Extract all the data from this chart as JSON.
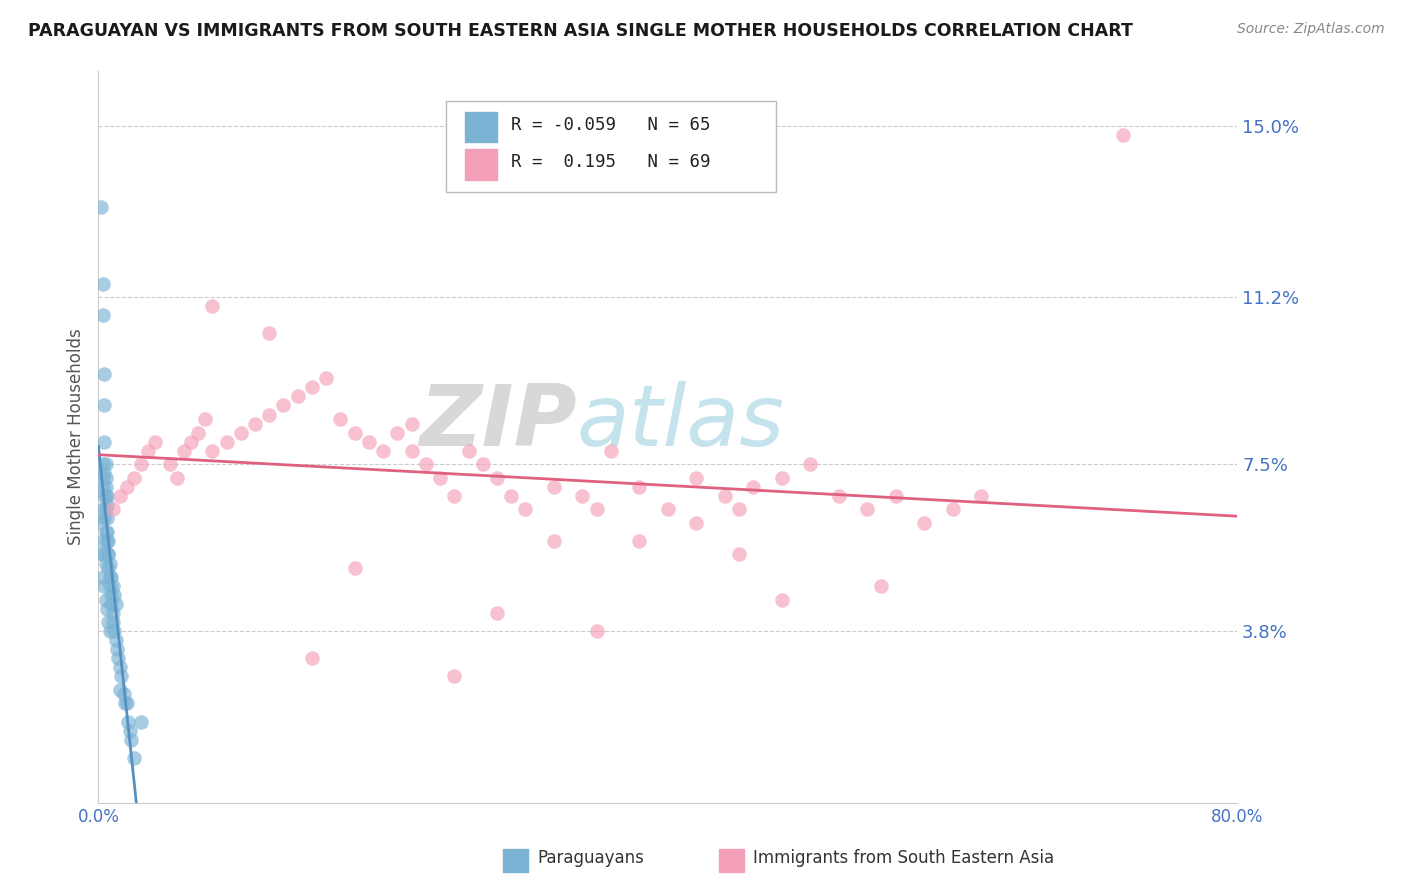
{
  "title": "PARAGUAYAN VS IMMIGRANTS FROM SOUTH EASTERN ASIA SINGLE MOTHER HOUSEHOLDS CORRELATION CHART",
  "source": "Source: ZipAtlas.com",
  "ylabel": "Single Mother Households",
  "xmin": 0.0,
  "xmax": 0.8,
  "ymin": 0.0,
  "ymax": 0.162,
  "yticks": [
    0.0,
    0.038,
    0.075,
    0.112,
    0.15
  ],
  "ytick_labels": [
    "",
    "3.8%",
    "7.5%",
    "11.2%",
    "15.0%"
  ],
  "xticks": [
    0.0,
    0.1,
    0.2,
    0.3,
    0.4,
    0.5,
    0.6,
    0.7,
    0.8
  ],
  "xtick_labels": [
    "0.0%",
    "",
    "",
    "",
    "",
    "",
    "",
    "",
    "80.0%"
  ],
  "blue_color": "#7ab3d4",
  "pink_color": "#f4a0b8",
  "blue_line_color": "#5590c0",
  "pink_line_color": "#e06080",
  "blue_R": -0.059,
  "blue_N": 65,
  "pink_R": 0.195,
  "pink_N": 69,
  "legend_label_blue": "Paraguayans",
  "legend_label_pink": "Immigrants from South Eastern Asia",
  "title_color": "#1a1a1a",
  "axis_label_color": "#4472c4",
  "blue_scatter_x": [
    0.002,
    0.003,
    0.003,
    0.004,
    0.004,
    0.004,
    0.005,
    0.005,
    0.005,
    0.006,
    0.006,
    0.006,
    0.007,
    0.007,
    0.007,
    0.008,
    0.008,
    0.009,
    0.009,
    0.01,
    0.01,
    0.011,
    0.012,
    0.013,
    0.014,
    0.015,
    0.016,
    0.018,
    0.019,
    0.021,
    0.022,
    0.023,
    0.025,
    0.003,
    0.003,
    0.004,
    0.005,
    0.006,
    0.007,
    0.008,
    0.009,
    0.01,
    0.011,
    0.012,
    0.002,
    0.003,
    0.004,
    0.005,
    0.006,
    0.007,
    0.008,
    0.003,
    0.004,
    0.005,
    0.006,
    0.003,
    0.004,
    0.005,
    0.002,
    0.003,
    0.004,
    0.005,
    0.015,
    0.02,
    0.03
  ],
  "blue_scatter_y": [
    0.132,
    0.115,
    0.108,
    0.095,
    0.088,
    0.08,
    0.075,
    0.072,
    0.068,
    0.066,
    0.063,
    0.06,
    0.058,
    0.055,
    0.052,
    0.05,
    0.048,
    0.046,
    0.044,
    0.042,
    0.04,
    0.038,
    0.036,
    0.034,
    0.032,
    0.03,
    0.028,
    0.024,
    0.022,
    0.018,
    0.016,
    0.014,
    0.01,
    0.07,
    0.065,
    0.063,
    0.06,
    0.058,
    0.055,
    0.053,
    0.05,
    0.048,
    0.046,
    0.044,
    0.055,
    0.05,
    0.048,
    0.045,
    0.043,
    0.04,
    0.038,
    0.075,
    0.073,
    0.07,
    0.068,
    0.072,
    0.068,
    0.065,
    0.062,
    0.058,
    0.055,
    0.053,
    0.025,
    0.022,
    0.018
  ],
  "pink_scatter_x": [
    0.01,
    0.015,
    0.02,
    0.025,
    0.03,
    0.035,
    0.04,
    0.05,
    0.055,
    0.06,
    0.065,
    0.07,
    0.075,
    0.08,
    0.09,
    0.1,
    0.11,
    0.12,
    0.13,
    0.14,
    0.15,
    0.16,
    0.17,
    0.18,
    0.19,
    0.2,
    0.21,
    0.22,
    0.23,
    0.24,
    0.25,
    0.26,
    0.27,
    0.28,
    0.29,
    0.3,
    0.32,
    0.34,
    0.35,
    0.36,
    0.38,
    0.4,
    0.42,
    0.44,
    0.45,
    0.46,
    0.48,
    0.5,
    0.52,
    0.54,
    0.56,
    0.58,
    0.6,
    0.62,
    0.55,
    0.45,
    0.35,
    0.25,
    0.15,
    0.72,
    0.28,
    0.18,
    0.38,
    0.48,
    0.08,
    0.12,
    0.42,
    0.32,
    0.22
  ],
  "pink_scatter_y": [
    0.065,
    0.068,
    0.07,
    0.072,
    0.075,
    0.078,
    0.08,
    0.075,
    0.072,
    0.078,
    0.08,
    0.082,
    0.085,
    0.078,
    0.08,
    0.082,
    0.084,
    0.086,
    0.088,
    0.09,
    0.092,
    0.094,
    0.085,
    0.082,
    0.08,
    0.078,
    0.082,
    0.084,
    0.075,
    0.072,
    0.068,
    0.078,
    0.075,
    0.072,
    0.068,
    0.065,
    0.07,
    0.068,
    0.065,
    0.078,
    0.07,
    0.065,
    0.072,
    0.068,
    0.065,
    0.07,
    0.072,
    0.075,
    0.068,
    0.065,
    0.068,
    0.062,
    0.065,
    0.068,
    0.048,
    0.055,
    0.038,
    0.028,
    0.032,
    0.148,
    0.042,
    0.052,
    0.058,
    0.045,
    0.11,
    0.104,
    0.062,
    0.058,
    0.078
  ]
}
